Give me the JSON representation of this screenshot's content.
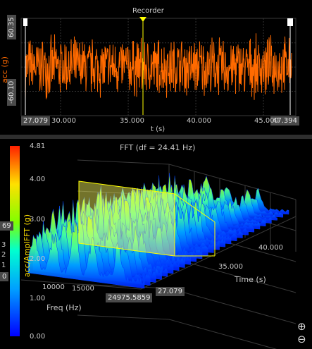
{
  "recorder": {
    "title": "Recorder",
    "ylabel": "acc (g)",
    "xlabel": "t (s)",
    "y_max_box": "60.35",
    "y_min_box": "-60.10",
    "x_start_box": "27.079",
    "x_end_box": "47.394",
    "x_ticks": [
      "30.000",
      "35.000",
      "40.000",
      "45.000"
    ],
    "signal_color": "#ff6a00",
    "cursor_color": "#ffff00"
  },
  "fft": {
    "title": "FFT (df = 24.41 Hz)",
    "zlabel": "acc/AmplFFT (g)",
    "z_ticks": [
      "4.81",
      "4.00",
      "3.00",
      "2.00",
      "1.00",
      "0.00"
    ],
    "freq_label": "Freq (Hz)",
    "freq_ticks": [
      "10000",
      "15000"
    ],
    "freq_end_box": "24975.5859",
    "time_label": "Time (s)",
    "time_ticks": [
      "40.000",
      "35.000"
    ],
    "time_start_box": "27.079",
    "left_edge_values": [
      "69",
      "3",
      "2",
      "1",
      "0"
    ],
    "zoom_in": "⊕",
    "zoom_out": "⊖"
  },
  "chart_data": [
    {
      "type": "line",
      "title": "Recorder",
      "xlabel": "t (s)",
      "ylabel": "acc (g)",
      "xlim": [
        27.079,
        47.394
      ],
      "ylim": [
        -60.1,
        60.35
      ],
      "x_ticks": [
        30,
        35,
        40,
        45
      ],
      "series": [
        {
          "values_description": "dense broadband noise roughly between -40 and 40 g"
        }
      ],
      "cursor_x": 35.5
    },
    {
      "type": "area",
      "title": "FFT (df = 24.41 Hz)",
      "zlabel": "acc/AmplFFT (g)",
      "zlim": [
        0.0,
        4.81
      ],
      "xlabel": "Freq (Hz)",
      "ylabel": "Time (s)",
      "xlim": [
        0,
        24975.5859
      ],
      "ylim": [
        27.079,
        47.394
      ]
    }
  ]
}
